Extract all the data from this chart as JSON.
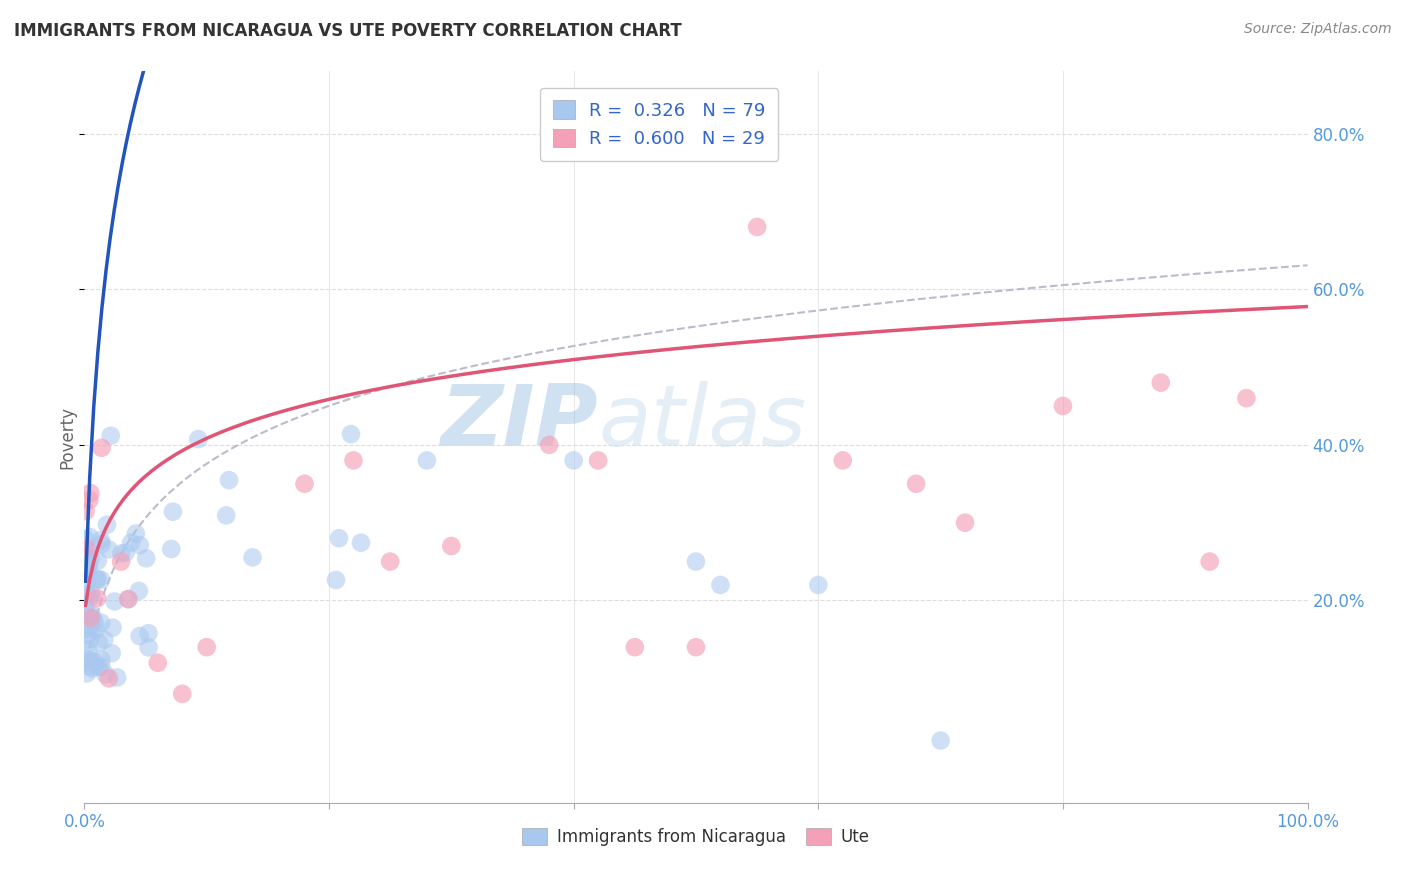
{
  "title": "IMMIGRANTS FROM NICARAGUA VS UTE POVERTY CORRELATION CHART",
  "source": "Source: ZipAtlas.com",
  "ylabel": "Poverty",
  "y_tick_values": [
    0.2,
    0.4,
    0.6,
    0.8
  ],
  "y_tick_labels": [
    "20.0%",
    "40.0%",
    "60.0%",
    "80.0%"
  ],
  "x_min": 0.0,
  "x_max": 1.0,
  "y_min": -0.06,
  "y_max": 0.88,
  "blue_color": "#A8C8F0",
  "pink_color": "#F4A0B8",
  "blue_line_color": "#2255BB",
  "pink_line_color": "#E05575",
  "dashed_line_color": "#BBBBCC",
  "watermark_text": "ZIPatlas",
  "watermark_color": "#C8D8F0",
  "background_color": "#FFFFFF",
  "title_color": "#333333",
  "title_fontsize": 12,
  "source_color": "#888888",
  "axis_color": "#5599DD",
  "grid_color": "#DDDDDD",
  "legend_fontsize": 13,
  "blue_N": 79,
  "pink_N": 29,
  "blue_R": 0.326,
  "pink_R": 0.6
}
